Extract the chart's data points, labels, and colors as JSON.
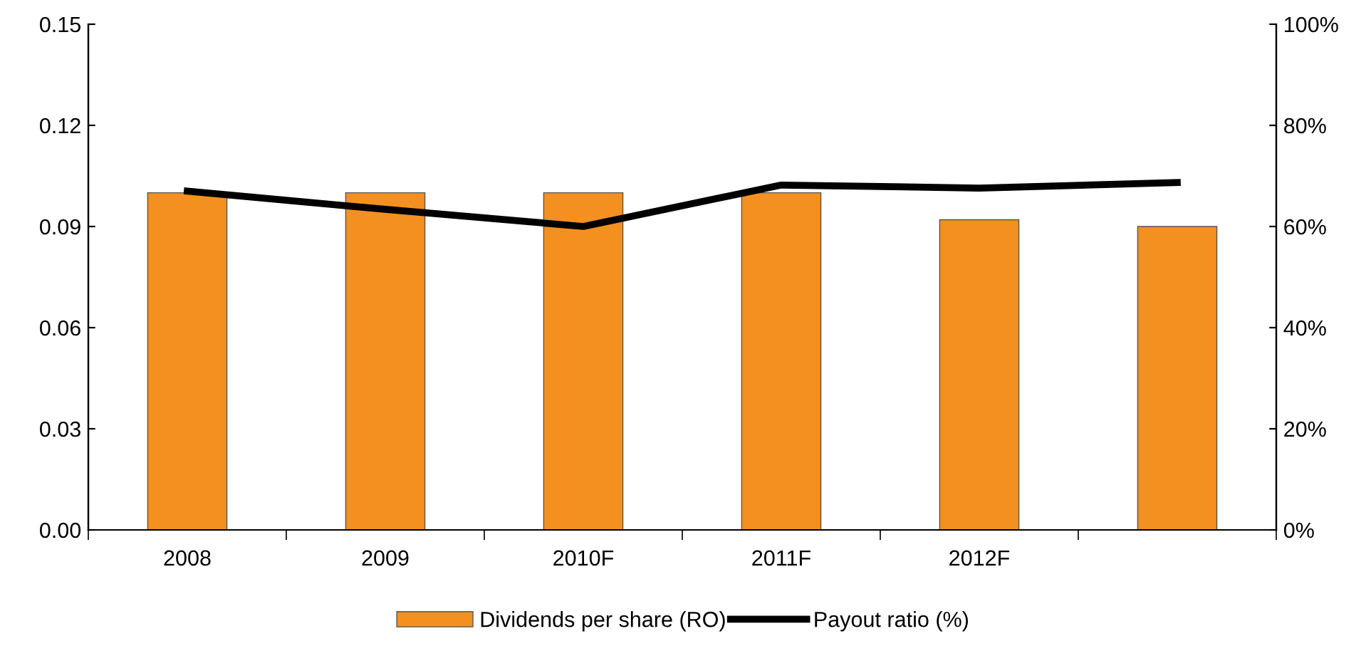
{
  "chart_data": {
    "type": "bar",
    "categories": [
      "2008",
      "2009",
      "2010F",
      "2011F",
      "2012F",
      null
    ],
    "series": [
      {
        "name": "Dividends per share (RO)",
        "color": "#f39020",
        "values": [
          0.1,
          0.1,
          0.1,
          0.1,
          0.092,
          0.09
        ]
      },
      {
        "name": "Payout ratio (%)",
        "type": "line",
        "axis": "y2",
        "color": "#000000",
        "values": [
          67,
          63.4,
          60,
          68.2,
          67.6,
          68.7
        ]
      }
    ],
    "ylim": [
      0,
      0.15
    ],
    "yticks": [
      {
        "value": 0,
        "label": "0.00"
      },
      {
        "value": 0.03,
        "label": "0.03"
      },
      {
        "value": 0.06,
        "label": "0.06"
      },
      {
        "value": 0.09,
        "label": "0.09"
      },
      {
        "value": 0.12,
        "label": "0.12"
      },
      {
        "value": 0.15,
        "label": "0.15"
      }
    ],
    "y2lim": [
      0,
      100
    ],
    "y2ticks": [
      {
        "value": 0,
        "label": "0%"
      },
      {
        "value": 20,
        "label": "20%"
      },
      {
        "value": 40,
        "label": "40%"
      },
      {
        "value": 60,
        "label": "60%"
      },
      {
        "value": 80,
        "label": "80%"
      },
      {
        "value": 100,
        "label": "100%"
      }
    ],
    "legend": "bottom",
    "grid": false
  }
}
